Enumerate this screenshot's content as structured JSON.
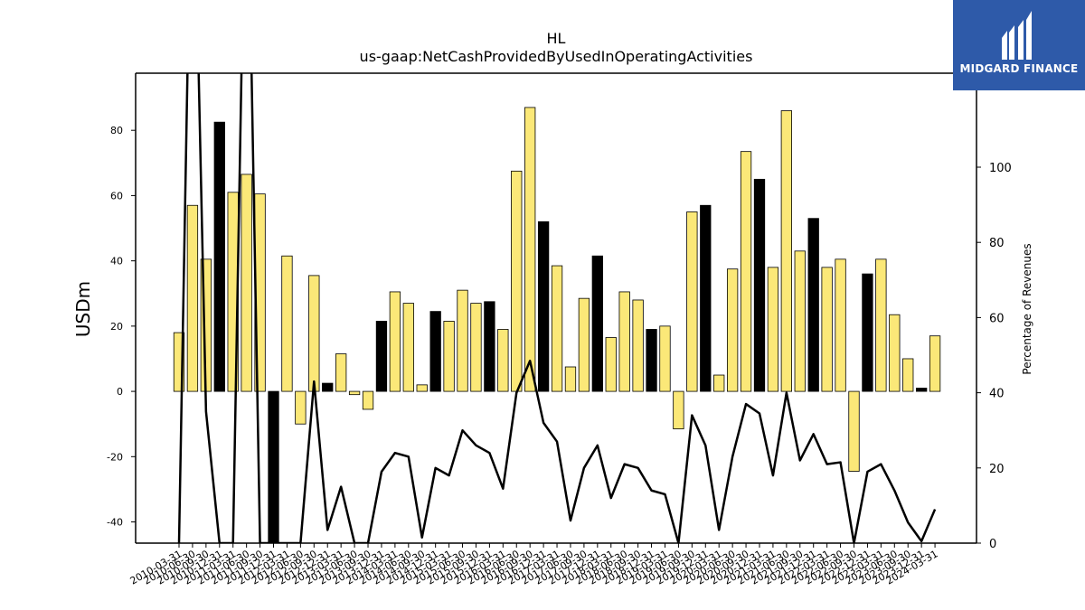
{
  "logo": {
    "text": "MIDGARD FINANCE",
    "color": "#2e5aa9"
  },
  "chart_data": {
    "type": "bar",
    "title": "HL",
    "subtitle": "us-gaap:NetCashProvidedByUsedInOperatingActivities",
    "ylabel": "USDm",
    "y2label": "Percentage of Revenues",
    "ylim": [
      -46.5,
      97.5
    ],
    "y2lim": [
      0,
      125
    ],
    "yticks": [
      -40,
      -20,
      0,
      20,
      40,
      60,
      80
    ],
    "y2ticks": [
      0,
      20,
      40,
      60,
      80,
      100
    ],
    "colors": {
      "yellow": "#fbe878",
      "black": "#000000"
    },
    "categories": [
      "2010-03-31",
      "2010-06-30",
      "2010-09-30",
      "2010-12-31",
      "2011-03-31",
      "2011-06-30",
      "2011-09-30",
      "2011-12-31",
      "2012-03-31",
      "2012-06-30",
      "2012-09-30",
      "2012-12-31",
      "2013-03-31",
      "2013-06-30",
      "2013-09-30",
      "2013-12-31",
      "2014-03-31",
      "2014-06-30",
      "2014-09-30",
      "2014-12-31",
      "2015-03-31",
      "2015-06-30",
      "2015-09-30",
      "2015-12-31",
      "2016-03-31",
      "2016-06-30",
      "2016-09-30",
      "2016-12-31",
      "2017-03-31",
      "2017-06-30",
      "2017-09-30",
      "2017-12-31",
      "2018-03-31",
      "2018-06-30",
      "2018-09-30",
      "2018-12-31",
      "2019-03-31",
      "2019-06-30",
      "2019-09-30",
      "2019-12-31",
      "2020-03-31",
      "2020-06-30",
      "2020-09-30",
      "2020-12-31",
      "2021-03-31",
      "2021-06-30",
      "2021-09-30",
      "2021-12-31",
      "2022-03-31",
      "2022-06-30",
      "2022-09-30",
      "2022-12-31",
      "2023-03-31",
      "2023-06-30",
      "2023-09-30",
      "2023-12-31",
      "2024-03-31"
    ],
    "series": [
      {
        "type": "bar",
        "values": [
          18,
          57,
          40.5,
          82.5,
          61,
          66.5,
          60.5,
          -46.5,
          41.5,
          -10,
          35.5,
          2.5,
          11.5,
          -1,
          -5.5,
          21.5,
          30.5,
          27,
          2,
          24.5,
          21.5,
          31,
          27,
          27.5,
          19,
          67.5,
          87,
          52,
          38.5,
          7.5,
          28.5,
          41.5,
          16.5,
          30.5,
          28,
          19,
          20,
          -11.5,
          55,
          57,
          5,
          37.5,
          73.5,
          65,
          38,
          86,
          43,
          53,
          38,
          40.5,
          -24.5,
          36,
          40.5,
          23.5,
          10,
          1,
          17
        ],
        "colors": [
          "yellow",
          "yellow",
          "yellow",
          "black",
          "yellow",
          "yellow",
          "yellow",
          "black",
          "yellow",
          "yellow",
          "yellow",
          "black",
          "yellow",
          "yellow",
          "yellow",
          "black",
          "yellow",
          "yellow",
          "yellow",
          "black",
          "yellow",
          "yellow",
          "yellow",
          "black",
          "yellow",
          "yellow",
          "yellow",
          "black",
          "yellow",
          "yellow",
          "yellow",
          "black",
          "yellow",
          "yellow",
          "yellow",
          "black",
          "yellow",
          "yellow",
          "yellow",
          "black",
          "yellow",
          "yellow",
          "yellow",
          "black",
          "yellow",
          "yellow",
          "yellow",
          "black",
          "yellow",
          "yellow",
          "yellow",
          "black",
          "yellow",
          "yellow",
          "yellow",
          "black",
          "yellow"
        ]
      },
      {
        "type": "line",
        "axis": "right",
        "values": [
          0,
          200,
          35,
          0,
          0,
          200,
          0,
          0,
          0,
          0,
          43,
          3.5,
          15,
          0,
          0,
          19,
          24,
          23,
          1.5,
          20,
          18,
          30,
          26,
          24,
          14.5,
          40,
          48.5,
          32,
          27,
          6,
          20,
          26,
          12,
          21,
          20,
          14,
          13,
          0,
          34,
          26,
          3.5,
          23,
          37,
          34.5,
          18,
          40,
          22,
          29,
          21,
          21.5,
          0,
          19,
          21,
          14,
          5.5,
          0.5,
          9
        ]
      }
    ]
  }
}
